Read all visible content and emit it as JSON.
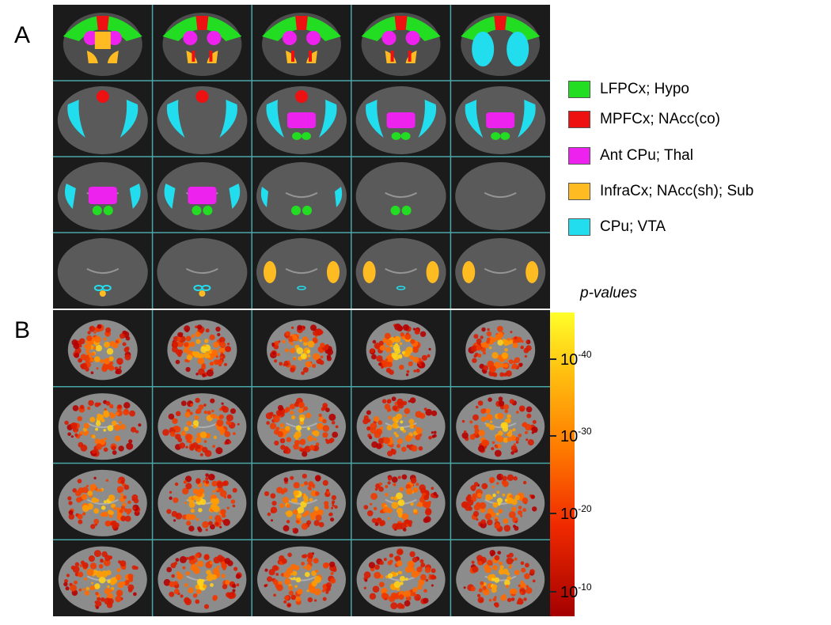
{
  "panel_a": {
    "label": "A"
  },
  "panel_b": {
    "label": "B"
  },
  "legend": {
    "items": [
      {
        "label": "LFPCx; Hypo",
        "color": "#22dd22"
      },
      {
        "label": "MPFCx; NAcc(co)",
        "color": "#ee1111"
      },
      {
        "label": "Ant CPu; Thal",
        "color": "#ee22ee"
      },
      {
        "label": "InfraCx; NAcc(sh); Sub",
        "color": "#ffbb22"
      },
      {
        "label": "CPu;  VTA",
        "color": "#22ddee"
      }
    ]
  },
  "colorbar": {
    "title": "p-values",
    "base": "10",
    "ticks": [
      {
        "exponent": "-40"
      },
      {
        "exponent": "-30"
      },
      {
        "exponent": "-20"
      },
      {
        "exponent": "-10"
      }
    ]
  },
  "grid": {
    "rows": 4,
    "cols": 5,
    "line_color": "#4aa7a8"
  }
}
